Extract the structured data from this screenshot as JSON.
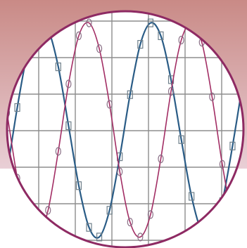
{
  "chart_data": {
    "type": "line",
    "title": "",
    "xlabel": "",
    "ylabel": "",
    "x_range": [
      0,
      1.15
    ],
    "y_range": [
      -1.05,
      1.05
    ],
    "grid": true,
    "legend": "none",
    "series": [
      {
        "marker": "square",
        "color": "#2a5c86",
        "marker_color": "#6e7f8a",
        "x": [
          0.0,
          0.05,
          0.1,
          0.15,
          0.2,
          0.25,
          0.3,
          0.35,
          0.4,
          0.45,
          0.5,
          0.55,
          0.6,
          0.65,
          0.7,
          0.75,
          0.8,
          0.85,
          0.9,
          0.95,
          1.0,
          1.05,
          1.1,
          1.15
        ],
        "y": [
          -0.4,
          0.21,
          0.72,
          0.99,
          0.94,
          0.59,
          0.04,
          -0.52,
          -0.91,
          -1.0,
          -0.75,
          -0.25,
          0.33,
          0.8,
          1.0,
          0.88,
          0.47,
          -0.09,
          -0.62,
          -0.95,
          -0.99,
          -0.67,
          -0.15,
          0.44
        ]
      },
      {
        "marker": "circle",
        "color": "#a22d64",
        "marker_color": "#8a6f86",
        "x": [
          0.0,
          0.05,
          0.1,
          0.15,
          0.2,
          0.25,
          0.3,
          0.35,
          0.4,
          0.45,
          0.5,
          0.55,
          0.6,
          0.65,
          0.7,
          0.75,
          0.8,
          0.85,
          0.9,
          0.95,
          1.0,
          1.05,
          1.1,
          1.15
        ],
        "y": [
          0.16,
          -0.45,
          -0.89,
          -1.0,
          -0.75,
          -0.2,
          0.43,
          0.88,
          1.0,
          0.76,
          0.24,
          -0.39,
          -0.86,
          -1.0,
          -0.79,
          -0.27,
          0.36,
          0.84,
          1.0,
          0.82,
          0.31,
          -0.32,
          -0.82,
          -1.0
        ]
      }
    ]
  },
  "theme": {
    "frame_color": "#8e2a63",
    "grid_color": "#8d8d8d",
    "backdrop_top": "#c98a86",
    "backdrop_bottom": "#e9cfd6"
  }
}
